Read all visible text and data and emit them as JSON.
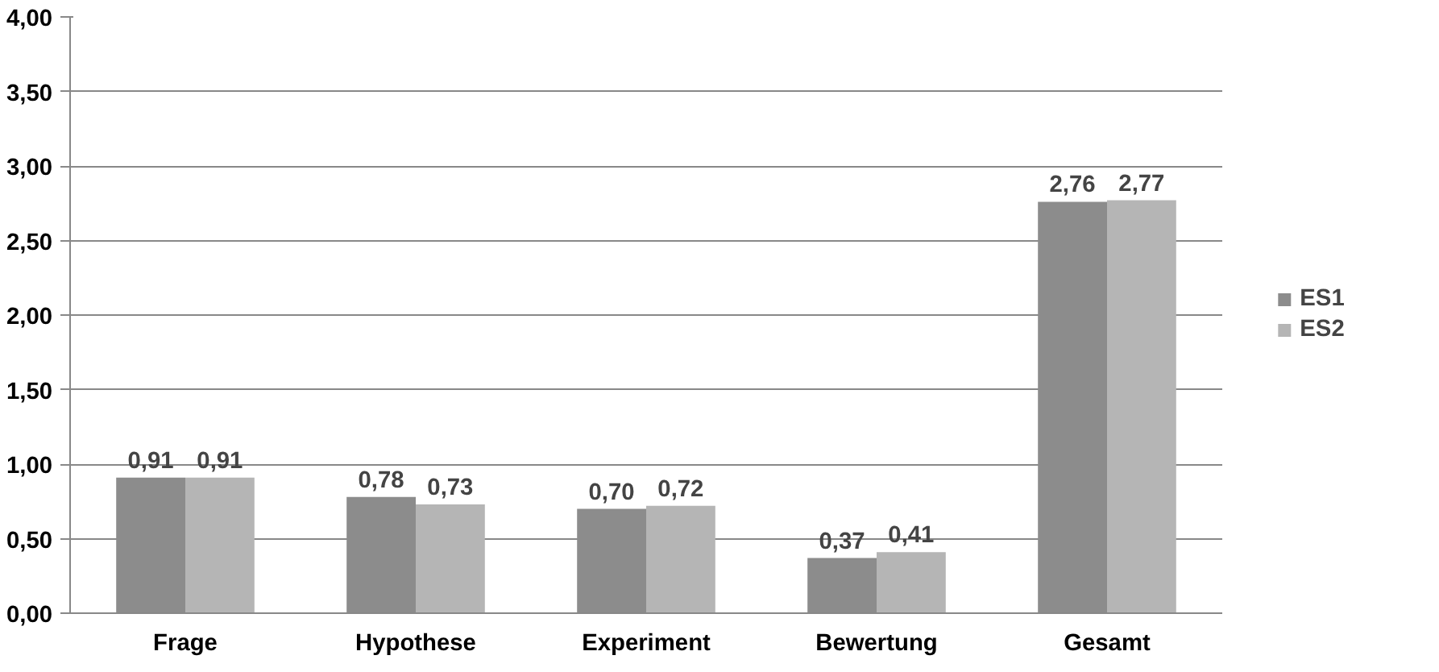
{
  "chart_data": {
    "type": "bar",
    "categories": [
      "Frage",
      "Hypothese",
      "Experiment",
      "Bewertung",
      "Gesamt"
    ],
    "series": [
      {
        "name": "ES1",
        "color": "#8c8c8c",
        "values": [
          0.91,
          0.78,
          0.7,
          0.37,
          2.76
        ],
        "value_labels": [
          "0,91",
          "0,78",
          "0,70",
          "0,37",
          "2,76"
        ]
      },
      {
        "name": "ES2",
        "color": "#b5b5b5",
        "values": [
          0.91,
          0.73,
          0.72,
          0.41,
          2.77
        ],
        "value_labels": [
          "0,91",
          "0,73",
          "0,72",
          "0,41",
          "2,77"
        ]
      }
    ],
    "ylim": [
      0,
      4
    ],
    "yticks": [
      {
        "value": 0,
        "label": "0,00"
      },
      {
        "value": 0.5,
        "label": "0,50"
      },
      {
        "value": 1,
        "label": "1,00"
      },
      {
        "value": 1.5,
        "label": "1,50"
      },
      {
        "value": 2,
        "label": "2,00"
      },
      {
        "value": 2.5,
        "label": "2,50"
      },
      {
        "value": 3,
        "label": "3,00"
      },
      {
        "value": 3.5,
        "label": "3,50"
      },
      {
        "value": 4,
        "label": "4,00"
      }
    ],
    "grid": "y",
    "legend": "right"
  }
}
